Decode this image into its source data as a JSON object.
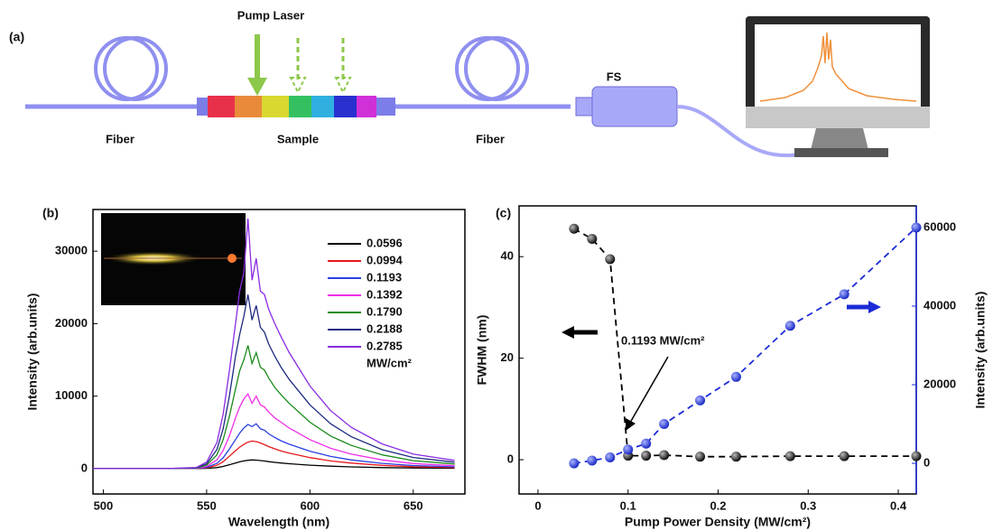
{
  "diagram": {
    "panel_label": "(a)",
    "pump_label": "Pump Laser",
    "fiber_left": "Fiber",
    "sample": "Sample",
    "fiber_right": "Fiber",
    "spectrometer": "FS"
  },
  "chart_data": [
    {
      "type": "line",
      "panel_label": "(b)",
      "xlabel": "Wavelength (nm)",
      "ylabel": "Intensity (arb.units)",
      "x": [
        495,
        510,
        530,
        545,
        550,
        555,
        558,
        561,
        564,
        566,
        568,
        570,
        572,
        574,
        576,
        578,
        580,
        583,
        586,
        590,
        600,
        610,
        620,
        635,
        650,
        670
      ],
      "series": [
        {
          "name": "0.0596",
          "color": "#000000",
          "values": [
            0,
            0,
            0,
            6,
            36,
            144,
            300,
            540,
            780,
            936,
            1056,
            1152,
            1200,
            1176,
            1116,
            1044,
            960,
            864,
            768,
            672,
            480,
            336,
            240,
            144,
            84,
            48
          ]
        },
        {
          "name": "0.0994",
          "color": "#e8191b",
          "values": [
            0,
            0,
            0,
            19,
            114,
            456,
            950,
            1710,
            2470,
            2964,
            3344,
            3648,
            3800,
            3724,
            3534,
            3306,
            3040,
            2736,
            2432,
            2128,
            1520,
            1064,
            760,
            456,
            266,
            152
          ]
        },
        {
          "name": "0.1193",
          "color": "#2a3fe0",
          "values": [
            0,
            0,
            0,
            30,
            180,
            720,
            1500,
            2700,
            4000,
            4900,
            5600,
            6100,
            5800,
            6200,
            5500,
            5300,
            4800,
            4300,
            3840,
            3360,
            2400,
            1680,
            1200,
            720,
            420,
            240
          ]
        },
        {
          "name": "0.1392",
          "color": "#ee2ee8",
          "values": [
            0,
            0,
            0,
            50,
            300,
            1200,
            2500,
            4500,
            7000,
            8500,
            9600,
            10300,
            9000,
            10000,
            8800,
            8500,
            7800,
            7000,
            6400,
            5600,
            4000,
            2800,
            2000,
            1200,
            700,
            400
          ]
        },
        {
          "name": "0.1790",
          "color": "#1a8a1a",
          "values": [
            0,
            0,
            0,
            80,
            480,
            1900,
            4000,
            7200,
            11000,
            13500,
            15000,
            17000,
            14500,
            16000,
            14000,
            13600,
            12500,
            11200,
            10200,
            9000,
            6400,
            4500,
            3200,
            1900,
            1100,
            640
          ]
        },
        {
          "name": "0.2188",
          "color": "#1f2a80",
          "values": [
            0,
            0,
            0,
            110,
            660,
            2640,
            5500,
            10000,
            15500,
            18500,
            21000,
            24000,
            20500,
            22500,
            19500,
            18800,
            17200,
            15500,
            14000,
            12300,
            8800,
            6200,
            4400,
            2600,
            1540,
            880
          ]
        },
        {
          "name": "0.2785",
          "color": "#8a2be2",
          "values": [
            0,
            0,
            0,
            150,
            900,
            3600,
            7500,
            13500,
            20000,
            24500,
            27000,
            34500,
            26000,
            29000,
            24500,
            24000,
            22000,
            20000,
            18200,
            16000,
            11400,
            8000,
            5700,
            3400,
            2000,
            1140
          ]
        }
      ],
      "legend_unit": "MW/cm²",
      "xlim": [
        495,
        675
      ],
      "xticks": [
        500,
        550,
        600,
        650
      ],
      "ylim": [
        -3500,
        35750
      ],
      "yticks": [
        0,
        10000,
        20000,
        30000
      ]
    },
    {
      "type": "scatter",
      "panel_label": "(c)",
      "xlabel": "Pump Power Density (MW/cm²)",
      "ylabel": "FWHM (nm)",
      "y2label": "Intensity (arb.units)",
      "annotation": "0.1193 MW/cm²",
      "x": [
        0.04,
        0.06,
        0.08,
        0.1,
        0.12,
        0.14,
        0.18,
        0.22,
        0.28,
        0.34,
        0.42
      ],
      "series": [
        {
          "color": "#000000",
          "values": [
            45.5,
            43.5,
            39.5,
            0.8,
            0.8,
            0.9,
            0.6,
            0.6,
            0.7,
            0.7,
            0.7
          ]
        },
        {
          "color": "#1c2bd6",
          "axis": "y2",
          "values": [
            0,
            700,
            1500,
            3500,
            5000,
            10000,
            16000,
            22000,
            35000,
            43000,
            60000
          ]
        }
      ],
      "xlim": [
        -0.021,
        0.42
      ],
      "xticks": [
        0,
        0.1,
        0.2,
        0.3,
        0.4
      ],
      "ylim": [
        -6.75,
        50
      ],
      "yticks": [
        0,
        20,
        40
      ],
      "y2lim": [
        -7800,
        65500
      ],
      "y2ticks": [
        0,
        20000,
        40000,
        60000
      ]
    }
  ]
}
